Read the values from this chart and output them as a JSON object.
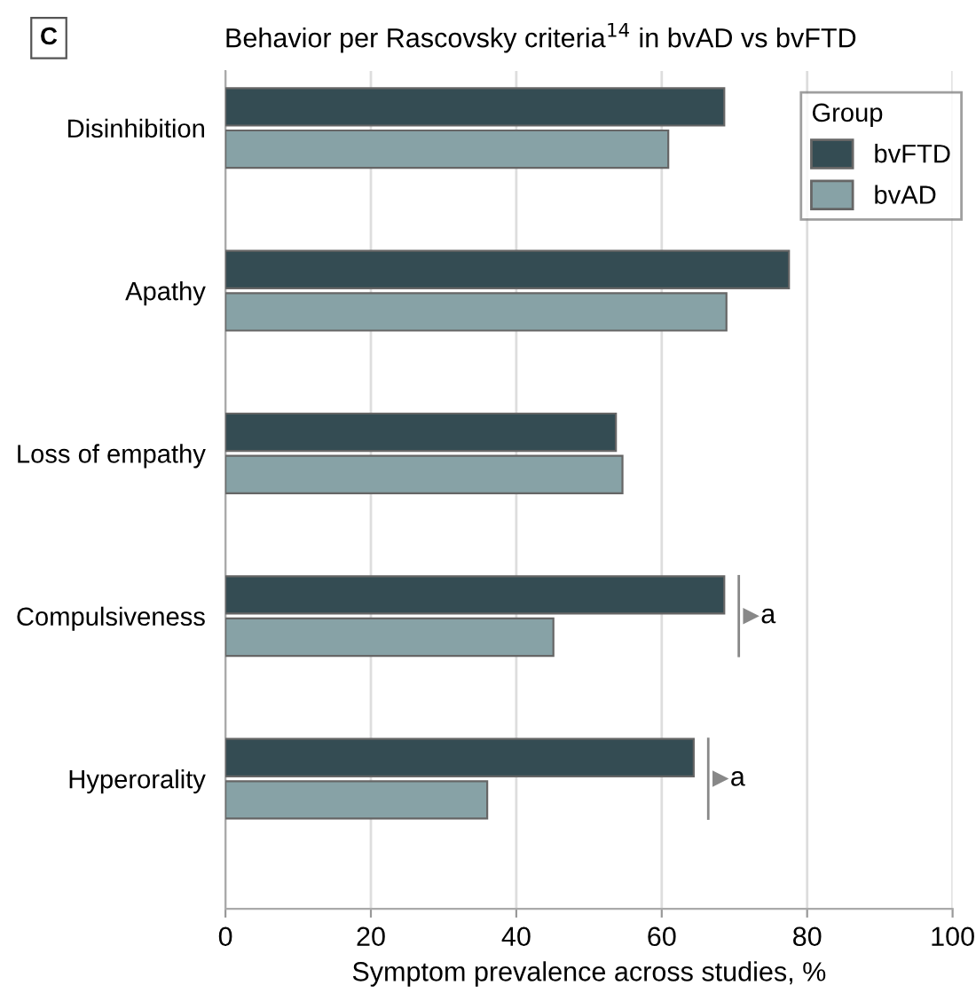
{
  "chart_data": {
    "type": "bar",
    "orientation": "horizontal",
    "title": "Behavior per Rascovsky criteria$^{14}$ in bvAD vs bvFTD",
    "xlabel": "Symptom prevalence across studies, %",
    "legend_title": "Group",
    "categories": [
      "Disinhibition",
      "Apathy",
      "Loss of empathy",
      "Compulsiveness",
      "Hyperorality"
    ],
    "series": [
      {
        "name": "bvFTD",
        "color": "#344c53",
        "values": [
          68.6,
          77.5,
          53.7,
          68.6,
          64.4
        ]
      },
      {
        "name": "bvAD",
        "color": "#87a2a6",
        "values": [
          60.9,
          68.9,
          54.6,
          45.1,
          36.0
        ]
      }
    ],
    "xlim": [
      0,
      100
    ],
    "xticks": [
      0,
      20,
      40,
      60,
      80,
      100
    ],
    "grid": "x",
    "legend": "top right",
    "annotations": [
      "C",
      "a",
      "a"
    ]
  }
}
